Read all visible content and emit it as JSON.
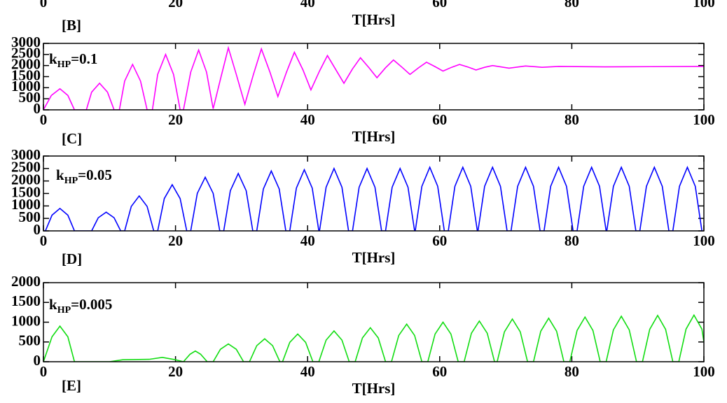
{
  "chart_data": [
    {
      "type": "line",
      "xlim": [
        0,
        100
      ],
      "xticks": [
        0,
        20,
        40,
        60,
        80,
        100
      ],
      "xlabel": "T[Hrs]"
    },
    {
      "type": "line",
      "panel_label": "[B]",
      "annotation_base": "k",
      "annotation_sub": "HP",
      "annotation_text": "=0.1",
      "color": "#ff00ff",
      "xlim": [
        0,
        100
      ],
      "xticks": [
        0,
        20,
        40,
        60,
        80,
        100
      ],
      "xlabel": "T[Hrs]",
      "ylim": [
        0,
        3000
      ],
      "yticks": [
        0,
        500,
        1000,
        1500,
        2000,
        2500,
        3000
      ],
      "x": [
        0,
        1.2,
        2.5,
        3.7,
        4.7,
        6.5,
        7.3,
        8.5,
        9.7,
        10.7,
        11.5,
        12.3,
        13.5,
        14.7,
        15.7,
        16.5,
        17.3,
        18.5,
        19.7,
        20.7,
        21.2,
        22.3,
        23.5,
        24.7,
        25.7,
        26.9,
        28,
        29.2,
        30.5,
        31.8,
        33,
        34.3,
        35.5,
        36.8,
        38,
        39.3,
        40.5,
        41.8,
        43,
        44.2,
        45.5,
        46.8,
        48,
        49.3,
        50.5,
        51.8,
        53,
        54.3,
        55.5,
        56.8,
        58,
        59.3,
        60.5,
        61.8,
        63,
        64.3,
        65.5,
        66.8,
        68,
        70.5,
        73,
        75.5,
        78,
        85,
        92,
        100
      ],
      "values": [
        0,
        650,
        950,
        650,
        0,
        0,
        800,
        1200,
        800,
        0,
        0,
        1300,
        2050,
        1300,
        0,
        0,
        1600,
        2500,
        1600,
        0,
        0,
        1700,
        2700,
        1700,
        50,
        1500,
        2800,
        1600,
        250,
        1600,
        2750,
        1700,
        600,
        1700,
        2600,
        1800,
        900,
        1750,
        2450,
        1850,
        1200,
        1850,
        2350,
        1900,
        1450,
        1900,
        2250,
        1920,
        1600,
        1900,
        2150,
        1950,
        1750,
        1920,
        2050,
        1930,
        1800,
        1920,
        2000,
        1880,
        1980,
        1920,
        1960,
        1940,
        1950,
        1960
      ]
    },
    {
      "type": "line",
      "panel_label": "[C]",
      "annotation_base": "k",
      "annotation_sub": "HP",
      "annotation_text": "=0.05",
      "color": "#0000ff",
      "xlim": [
        0,
        100
      ],
      "xticks": [
        0,
        20,
        40,
        60,
        80,
        100
      ],
      "xlabel": "T[Hrs]",
      "ylim": [
        0,
        3000
      ],
      "yticks": [
        0,
        500,
        1000,
        1500,
        2000,
        2500,
        3000
      ],
      "x": [
        0,
        0.3,
        1.3,
        2.5,
        3.7,
        4.7,
        7.3,
        8.3,
        9.5,
        10.7,
        11.7,
        12.3,
        13.3,
        14.5,
        15.7,
        16.7,
        17.3,
        18.3,
        19.5,
        20.7,
        21.7,
        22.3,
        23.3,
        24.5,
        25.7,
        26.7,
        27.3,
        28.3,
        29.5,
        30.7,
        31.7,
        32.3,
        33.3,
        34.5,
        35.7,
        36.7,
        37.3,
        38.3,
        39.5,
        40.7,
        41.7,
        41.8,
        42.8,
        44,
        45.2,
        46.2,
        46.8,
        47.8,
        49,
        50.2,
        51.2,
        51.8,
        52.8,
        54,
        55.2,
        56.2,
        56.3,
        57.3,
        58.5,
        59.7,
        60.7,
        61.3,
        62.3,
        63.5,
        64.7,
        65.7,
        65.8,
        66.8,
        68,
        69.2,
        70.2,
        70.8,
        71.8,
        73,
        74.2,
        75.2,
        75.8,
        76.8,
        78,
        79.2,
        80.2,
        80.8,
        81.8,
        83,
        84.2,
        85.2,
        85.3,
        86.3,
        87.5,
        88.7,
        89.7,
        90.3,
        91.3,
        92.5,
        93.7,
        94.7,
        95.3,
        96.3,
        97.5,
        98.7,
        99.7
      ],
      "values": [
        0,
        0,
        630,
        900,
        630,
        0,
        0,
        525,
        750,
        525,
        0,
        0,
        980,
        1400,
        980,
        0,
        0,
        1295,
        1850,
        1295,
        0,
        0,
        1505,
        2150,
        1505,
        0,
        0,
        1610,
        2300,
        1610,
        0,
        0,
        1680,
        2400,
        1680,
        0,
        0,
        1715,
        2450,
        1715,
        0,
        0,
        1750,
        2500,
        1750,
        0,
        0,
        1750,
        2500,
        1750,
        0,
        0,
        1750,
        2500,
        1750,
        0,
        0,
        1785,
        2550,
        1785,
        0,
        0,
        1785,
        2550,
        1785,
        0,
        0,
        1785,
        2550,
        1785,
        0,
        0,
        1785,
        2550,
        1785,
        0,
        0,
        1785,
        2550,
        1785,
        0,
        0,
        1785,
        2550,
        1785,
        0,
        0,
        1785,
        2550,
        1785,
        0,
        0,
        1785,
        2550,
        1785,
        0,
        0,
        1785,
        2550,
        1785,
        0
      ]
    },
    {
      "type": "line",
      "panel_label": "[D]",
      "annotation_base": "k",
      "annotation_sub": "HP",
      "annotation_text": "=0.005",
      "color": "#11dd11",
      "xlim": [
        0,
        100
      ],
      "xticks": [
        0,
        20,
        40,
        60,
        80,
        100
      ],
      "xlabel": "T[Hrs]",
      "ylim": [
        0,
        2000
      ],
      "yticks": [
        0,
        500,
        1000,
        1500,
        2000
      ],
      "x": [
        0,
        1.3,
        2.5,
        3.7,
        4.7,
        10,
        12,
        16,
        18,
        20,
        21.2,
        22.2,
        23,
        23.8,
        24.8,
        25.7,
        26.8,
        28,
        29.2,
        30.3,
        31.2,
        32.3,
        33.5,
        34.7,
        35.8,
        36.2,
        37.3,
        38.5,
        39.7,
        40.8,
        41.7,
        42.8,
        44,
        45.2,
        46.3,
        47.2,
        48.3,
        49.5,
        50.7,
        51.8,
        52.7,
        53.8,
        55,
        56.2,
        57.3,
        58.2,
        59.3,
        60.5,
        61.7,
        62.8,
        63.7,
        64.8,
        66,
        67.2,
        68.3,
        68.7,
        69.8,
        71,
        72.2,
        73.3,
        74.2,
        75.3,
        76.5,
        77.7,
        78.8,
        79.7,
        80.8,
        82,
        83.2,
        84.3,
        85.2,
        86.3,
        87.5,
        88.7,
        89.8,
        90.7,
        91.8,
        93,
        94.2,
        95.3,
        96.2,
        97.3,
        98.5,
        99.7,
        100
      ],
      "values": [
        0,
        630,
        900,
        630,
        0,
        0,
        50,
        60,
        110,
        50,
        0,
        190,
        270,
        190,
        0,
        0,
        315,
        450,
        315,
        0,
        0,
        406,
        580,
        406,
        0,
        0,
        490,
        700,
        490,
        0,
        0,
        546,
        780,
        546,
        0,
        0,
        602,
        860,
        602,
        0,
        0,
        665,
        950,
        665,
        0,
        0,
        700,
        1000,
        700,
        0,
        0,
        721,
        1030,
        721,
        0,
        0,
        756,
        1080,
        756,
        0,
        0,
        770,
        1100,
        770,
        0,
        0,
        791,
        1130,
        791,
        0,
        0,
        805,
        1150,
        805,
        0,
        0,
        819,
        1170,
        819,
        0,
        0,
        826,
        1180,
        826,
        500
      ]
    }
  ],
  "next_panel_label": "[E]"
}
